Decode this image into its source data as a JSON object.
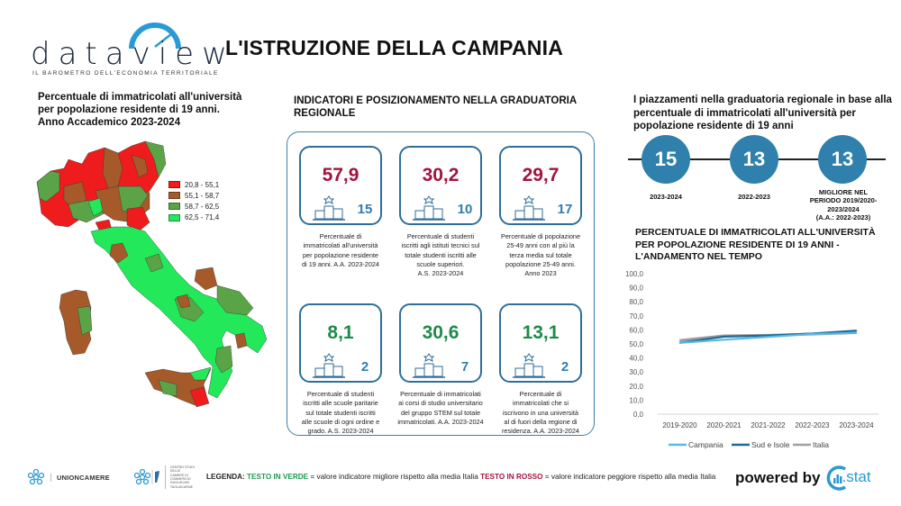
{
  "header": {
    "logo_wordmark": "dataview",
    "logo_tagline": "IL BAROMETRO DELL'ECONOMIA TERRITORIALE",
    "title": "L'ISTRUZIONE DELLA CAMPANIA"
  },
  "map": {
    "title_lines": [
      "Percentuale di immatricolati all'università",
      "per popolazione residente di 19 anni.",
      "Anno Accademico 2023-2024"
    ],
    "legend": [
      {
        "label": "20,8 - 55,1",
        "color": "#ee1c1c"
      },
      {
        "label": "55,1 - 58,7",
        "color": "#a65a2a"
      },
      {
        "label": "58,7 - 62,5",
        "color": "#5aa447"
      },
      {
        "label": "62,5 - 71,4",
        "color": "#22e85a"
      }
    ]
  },
  "indicators": {
    "title_lines": [
      "INDICATORI E POSIZIONAMENTO NELLA GRADUATORIA",
      "REGIONALE"
    ],
    "cards": [
      {
        "value": "57,9",
        "rank": "15",
        "tone": "red",
        "desc": [
          "Percentuale di",
          "immatricolati all'università",
          "per popolazione residente",
          "di 19 anni. A.A. 2023-2024"
        ]
      },
      {
        "value": "30,2",
        "rank": "10",
        "tone": "red",
        "desc": [
          "Percentuale di studenti",
          "iscritti agli istituti tecnici sul",
          "totale studenti iscritti alle",
          "scuole superiori.",
          "A.S. 2023-2024"
        ]
      },
      {
        "value": "29,7",
        "rank": "17",
        "tone": "red",
        "desc": [
          "Percentuale di popolazione",
          "25-49 anni con al più la",
          "terza media sul totale",
          "popolazione 25-49 anni.",
          "Anno 2023"
        ]
      },
      {
        "value": "8,1",
        "rank": "2",
        "tone": "green",
        "desc": [
          "Percentuale di studenti",
          "iscritti alle scuole paritarie",
          "sul totale studenti iscritti",
          "alle scuole di ogni ordine e",
          "grado. A.S. 2023-2024"
        ]
      },
      {
        "value": "30,6",
        "rank": "7",
        "tone": "green",
        "desc": [
          "Percentuale di immatricolati",
          "ai corsi di studio universitario",
          "del gruppo STEM sul totale",
          "immatricolati. A.A. 2023-2024"
        ]
      },
      {
        "value": "13,1",
        "rank": "2",
        "tone": "green",
        "desc": [
          "Percentuale di",
          "immatricolati che si",
          "iscrivono in una università",
          "al di fuori della regione di",
          "residenza. A.A. 2023-2024"
        ]
      }
    ]
  },
  "ranking": {
    "title_lines": [
      "I piazzamenti nella graduatoria regionale in base alla",
      "percentuale di immatricolati all'università per",
      "popolazione residente di 19 anni"
    ],
    "items": [
      {
        "rank": "15",
        "label_lines": [
          "2023-2024"
        ]
      },
      {
        "rank": "13",
        "label_lines": [
          "2022-2023"
        ]
      },
      {
        "rank": "13",
        "label_lines": [
          "MIGLIORE NEL",
          "PERIODO 2019/2020-",
          "2023/2024",
          "(A.A.: 2022-2023)"
        ]
      }
    ]
  },
  "chart_data": {
    "type": "line",
    "title": "PERCENTUALE DI IMMATRICOLATI ALL'UNIVERSITÀ PER POPOLAZIONE RESIDENTE DI 19 ANNI - L'ANDAMENTO NEL TEMPO",
    "title_lines": [
      "PERCENTUALE DI IMMATRICOLATI ALL'UNIVERSITÀ",
      "PER POPOLAZIONE RESIDENTE DI 19 ANNI -",
      "L'ANDAMENTO NEL TEMPO"
    ],
    "categories": [
      "2019-2020",
      "2020-2021",
      "2021-2022",
      "2022-2023",
      "2023-2024"
    ],
    "ylim": [
      0,
      100
    ],
    "yticks": [
      "0,0",
      "10,0",
      "20,0",
      "30,0",
      "40,0",
      "50,0",
      "60,0",
      "70,0",
      "80,0",
      "90,0",
      "100,0"
    ],
    "xlabel": "",
    "ylabel": "",
    "grid": false,
    "legend_position": "bottom",
    "series": [
      {
        "name": "Campania",
        "color": "#5bb8e6",
        "values": [
          50.8,
          53.0,
          55.0,
          57.0,
          57.9
        ]
      },
      {
        "name": "Sud e Isole",
        "color": "#1f6a95",
        "values": [
          50.8,
          55.2,
          56.0,
          57.4,
          59.5
        ]
      },
      {
        "name": "Italia",
        "color": "#a0a0a0",
        "values": [
          52.5,
          55.8,
          56.2,
          57.0,
          58.0
        ]
      }
    ]
  },
  "footer": {
    "unioncamere": "UNIONCAMERE",
    "tagliacarne_lines": [
      "CENTRO STUDI DELLE",
      "CAMERE DI COMMERCIO",
      "GUGLIELMO TAGLIACARNE"
    ],
    "legend_label": "LEGENDA:",
    "legend_green": "TESTO IN VERDE",
    "legend_green_desc": " = valore indicatore migliore rispetto alla media Italia ",
    "legend_red": "TESTO IN ROSSO",
    "legend_red_desc": " = valore indicatore peggiore rispetto alla media Italia",
    "powered_by": "powered by",
    "cstat": ".stat"
  },
  "colors": {
    "accent_blue": "#2f80ac",
    "panel_border": "#3f7fa3",
    "value_red": "#a0153e",
    "value_green": "#1f8a4c"
  }
}
